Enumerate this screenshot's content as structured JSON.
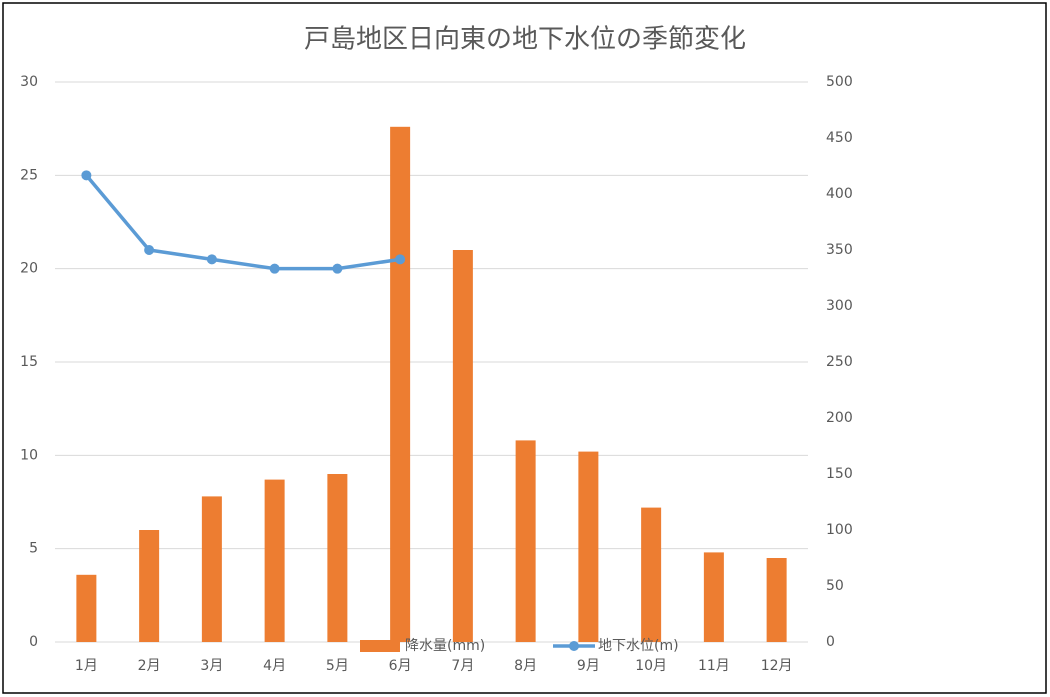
{
  "chart_data": {
    "type": "combo",
    "title": "戸島地区日向東の地下水位の季節変化",
    "categories": [
      "1月",
      "2月",
      "3月",
      "4月",
      "5月",
      "6月",
      "7月",
      "8月",
      "9月",
      "10月",
      "11月",
      "12月"
    ],
    "series": [
      {
        "name": "降水量(mm)",
        "type": "bar",
        "axis": "y2",
        "color": "#ed7d31",
        "values": [
          60,
          100,
          130,
          145,
          150,
          460,
          350,
          180,
          170,
          120,
          80,
          75
        ]
      },
      {
        "name": "地下水位(m)",
        "type": "line",
        "axis": "y",
        "color": "#5b9bd5",
        "values": [
          25,
          21,
          20.5,
          20,
          20,
          20.5,
          null,
          null,
          null,
          null,
          null,
          null
        ]
      }
    ],
    "ylim": [
      0,
      30
    ],
    "yticks": [
      0,
      5,
      10,
      15,
      20,
      25,
      30
    ],
    "y2lim": [
      0,
      500
    ],
    "y2ticks": [
      0,
      50,
      100,
      150,
      200,
      250,
      300,
      350,
      400,
      450,
      500
    ],
    "grid": true,
    "legend": "bottom"
  }
}
